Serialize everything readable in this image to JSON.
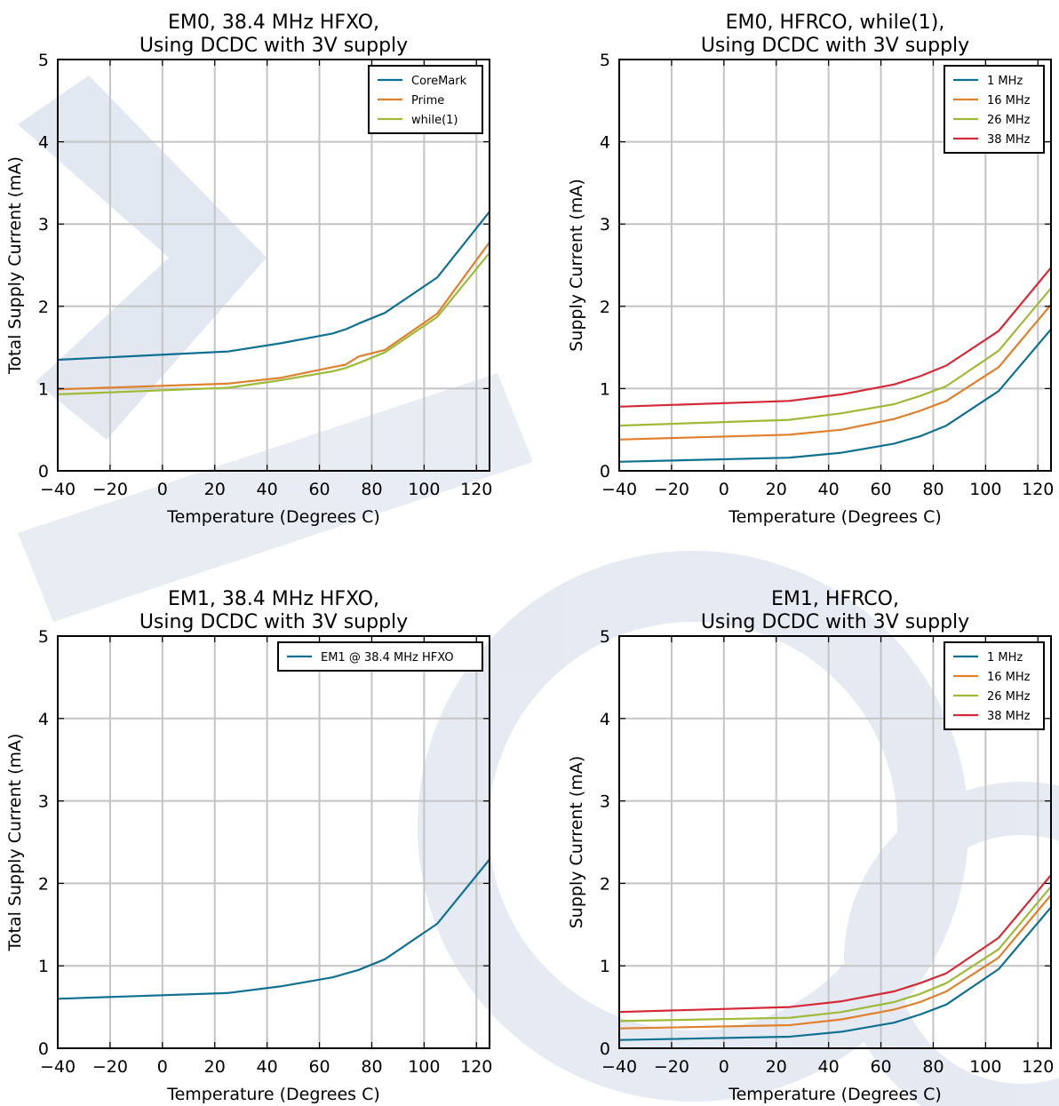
{
  "chart_data": [
    {
      "type": "line",
      "title": [
        "EM0, 38.4 MHz HFXO,",
        "Using DCDC with 3V supply"
      ],
      "xlabel": "Temperature (Degrees C)",
      "ylabel": "Total Supply Current (mA)",
      "xlim": [
        -40,
        125
      ],
      "ylim": [
        0,
        5
      ],
      "xticks": [
        -40,
        -20,
        0,
        20,
        40,
        60,
        80,
        100,
        120
      ],
      "yticks": [
        0,
        1,
        2,
        3,
        4,
        5
      ],
      "xtick_labels": [
        "−40",
        "−20",
        "0",
        "20",
        "40",
        "60",
        "80",
        "100",
        "120"
      ],
      "ytick_labels": [
        "0",
        "1",
        "2",
        "3",
        "4",
        "5"
      ],
      "grid": true,
      "legend_position": "top-right",
      "series": [
        {
          "name": "CoreMark",
          "color": "#0f7191",
          "x": [
            -40,
            25,
            45,
            65,
            70,
            75,
            85,
            105,
            125
          ],
          "y": [
            1.35,
            1.45,
            1.55,
            1.67,
            1.72,
            1.79,
            1.92,
            2.35,
            3.15
          ]
        },
        {
          "name": "Prime",
          "color": "#e07f2c",
          "x": [
            -40,
            25,
            45,
            65,
            70,
            75,
            85,
            105,
            125
          ],
          "y": [
            0.99,
            1.06,
            1.13,
            1.26,
            1.29,
            1.39,
            1.47,
            1.91,
            2.78
          ]
        },
        {
          "name": "while(1)",
          "color": "#9dbb37",
          "x": [
            -40,
            25,
            45,
            65,
            70,
            75,
            85,
            105,
            125
          ],
          "y": [
            0.93,
            1.01,
            1.1,
            1.21,
            1.25,
            1.31,
            1.44,
            1.87,
            2.65
          ]
        }
      ]
    },
    {
      "type": "line",
      "title": [
        "EM0, HFRCO, while(1),",
        "Using DCDC with 3V supply"
      ],
      "xlabel": "Temperature (Degrees C)",
      "ylabel": "Supply Current (mA)",
      "xlim": [
        -40,
        125
      ],
      "ylim": [
        0,
        5
      ],
      "xticks": [
        -40,
        -20,
        0,
        20,
        40,
        60,
        80,
        100,
        120
      ],
      "yticks": [
        0,
        1,
        2,
        3,
        4,
        5
      ],
      "xtick_labels": [
        "−40",
        "−20",
        "0",
        "20",
        "40",
        "60",
        "80",
        "100",
        "120"
      ],
      "ytick_labels": [
        "0",
        "1",
        "2",
        "3",
        "4",
        "5"
      ],
      "grid": true,
      "legend_position": "top-right",
      "series": [
        {
          "name": "1 MHz",
          "color": "#0f7191",
          "x": [
            -40,
            25,
            45,
            65,
            75,
            85,
            105,
            125
          ],
          "y": [
            0.11,
            0.16,
            0.22,
            0.33,
            0.42,
            0.55,
            0.97,
            1.72
          ]
        },
        {
          "name": "16 MHz",
          "color": "#e07f2c",
          "x": [
            -40,
            25,
            45,
            65,
            75,
            85,
            105,
            125
          ],
          "y": [
            0.38,
            0.44,
            0.5,
            0.63,
            0.73,
            0.85,
            1.26,
            2.02
          ]
        },
        {
          "name": "26 MHz",
          "color": "#9dbb37",
          "x": [
            -40,
            25,
            45,
            65,
            75,
            85,
            105,
            125
          ],
          "y": [
            0.55,
            0.62,
            0.7,
            0.81,
            0.91,
            1.03,
            1.46,
            2.22
          ]
        },
        {
          "name": "38 MHz",
          "color": "#d42a37",
          "x": [
            -40,
            25,
            45,
            65,
            75,
            85,
            105,
            125
          ],
          "y": [
            0.78,
            0.85,
            0.93,
            1.05,
            1.15,
            1.28,
            1.7,
            2.47
          ]
        }
      ]
    },
    {
      "type": "line",
      "title": [
        "EM1, 38.4 MHz HFXO,",
        "Using DCDC with 3V supply"
      ],
      "xlabel": "Temperature (Degrees C)",
      "ylabel": "Total Supply Current (mA)",
      "xlim": [
        -40,
        125
      ],
      "ylim": [
        0,
        5
      ],
      "xticks": [
        -40,
        -20,
        0,
        20,
        40,
        60,
        80,
        100,
        120
      ],
      "yticks": [
        0,
        1,
        2,
        3,
        4,
        5
      ],
      "xtick_labels": [
        "−40",
        "−20",
        "0",
        "20",
        "40",
        "60",
        "80",
        "100",
        "120"
      ],
      "ytick_labels": [
        "0",
        "1",
        "2",
        "3",
        "4",
        "5"
      ],
      "grid": true,
      "legend_position": "top-right",
      "series": [
        {
          "name": "EM1 @ 38.4 MHz HFXO",
          "color": "#0f7191",
          "x": [
            -40,
            25,
            45,
            65,
            75,
            85,
            105,
            125
          ],
          "y": [
            0.6,
            0.67,
            0.75,
            0.86,
            0.95,
            1.08,
            1.51,
            2.29
          ]
        }
      ]
    },
    {
      "type": "line",
      "title": [
        "EM1, HFRCO,",
        "Using DCDC with 3V supply"
      ],
      "xlabel": "Temperature (Degrees C)",
      "ylabel": "Supply Current (mA)",
      "xlim": [
        -40,
        125
      ],
      "ylim": [
        0,
        5
      ],
      "xticks": [
        -40,
        -20,
        0,
        20,
        40,
        60,
        80,
        100,
        120
      ],
      "yticks": [
        0,
        1,
        2,
        3,
        4,
        5
      ],
      "xtick_labels": [
        "−40",
        "−20",
        "0",
        "20",
        "40",
        "60",
        "80",
        "100",
        "120"
      ],
      "ytick_labels": [
        "0",
        "1",
        "2",
        "3",
        "4",
        "5"
      ],
      "grid": true,
      "legend_position": "top-right",
      "series": [
        {
          "name": "1 MHz",
          "color": "#0f7191",
          "x": [
            -40,
            25,
            45,
            65,
            75,
            85,
            105,
            125
          ],
          "y": [
            0.1,
            0.14,
            0.2,
            0.31,
            0.41,
            0.53,
            0.96,
            1.71
          ]
        },
        {
          "name": "16 MHz",
          "color": "#e07f2c",
          "x": [
            -40,
            25,
            45,
            65,
            75,
            85,
            105,
            125
          ],
          "y": [
            0.24,
            0.28,
            0.35,
            0.47,
            0.56,
            0.69,
            1.1,
            1.86
          ]
        },
        {
          "name": "26 MHz",
          "color": "#9dbb37",
          "x": [
            -40,
            25,
            45,
            65,
            75,
            85,
            105,
            125
          ],
          "y": [
            0.33,
            0.37,
            0.44,
            0.56,
            0.66,
            0.79,
            1.2,
            1.96
          ]
        },
        {
          "name": "38 MHz",
          "color": "#d42a37",
          "x": [
            -40,
            25,
            45,
            65,
            75,
            85,
            105,
            125
          ],
          "y": [
            0.44,
            0.5,
            0.57,
            0.69,
            0.79,
            0.91,
            1.34,
            2.1
          ]
        }
      ]
    }
  ]
}
